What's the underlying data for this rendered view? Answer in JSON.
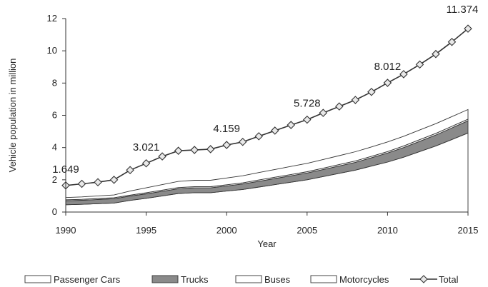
{
  "chart_data": {
    "type": "area",
    "title": "",
    "xlabel": "Year",
    "ylabel": "Vehicle population in million",
    "xlim": [
      1990,
      2015
    ],
    "ylim": [
      0,
      12
    ],
    "x_ticks": [
      "1990",
      "1995",
      "2000",
      "2005",
      "2010",
      "2015"
    ],
    "y_ticks": [
      "0",
      "2",
      "4",
      "6",
      "8",
      "10",
      "12"
    ],
    "grid": false,
    "legend_position": "bottom",
    "legend_order": [
      "Passenger Cars",
      "Trucks",
      "Buses",
      "Motorcycles",
      "Total"
    ],
    "years": [
      1990,
      1991,
      1992,
      1993,
      1994,
      1995,
      1996,
      1997,
      1998,
      1999,
      2000,
      2001,
      2002,
      2003,
      2004,
      2005,
      2006,
      2007,
      2008,
      2009,
      2010,
      2011,
      2012,
      2013,
      2014,
      2015
    ],
    "series": [
      {
        "name": "Passenger Cars",
        "kind": "area",
        "color": "#ffffff",
        "values": [
          0.45,
          0.48,
          0.52,
          0.56,
          0.72,
          0.85,
          1.0,
          1.15,
          1.2,
          1.2,
          1.3,
          1.4,
          1.55,
          1.7,
          1.85,
          2.0,
          2.2,
          2.4,
          2.6,
          2.85,
          3.1,
          3.4,
          3.75,
          4.1,
          4.5,
          4.9
        ]
      },
      {
        "name": "Trucks",
        "kind": "area",
        "color": "#8a8a8a",
        "values": [
          0.25,
          0.25,
          0.26,
          0.27,
          0.27,
          0.28,
          0.29,
          0.3,
          0.3,
          0.3,
          0.32,
          0.34,
          0.36,
          0.38,
          0.4,
          0.42,
          0.44,
          0.46,
          0.48,
          0.52,
          0.56,
          0.6,
          0.64,
          0.68,
          0.72,
          0.76
        ]
      },
      {
        "name": "Buses",
        "kind": "area",
        "color": "#ffffff",
        "values": [
          0.06,
          0.06,
          0.06,
          0.06,
          0.06,
          0.07,
          0.07,
          0.07,
          0.07,
          0.07,
          0.07,
          0.07,
          0.08,
          0.08,
          0.08,
          0.08,
          0.08,
          0.09,
          0.09,
          0.09,
          0.09,
          0.1,
          0.1,
          0.1,
          0.1,
          0.1
        ]
      },
      {
        "name": "Motorcycles",
        "kind": "area",
        "color": "#ffffff",
        "values": [
          0.14,
          0.15,
          0.16,
          0.17,
          0.25,
          0.3,
          0.34,
          0.38,
          0.4,
          0.4,
          0.42,
          0.44,
          0.46,
          0.48,
          0.5,
          0.52,
          0.54,
          0.55,
          0.57,
          0.58,
          0.6,
          0.6,
          0.6,
          0.6,
          0.6,
          0.6
        ]
      },
      {
        "name": "Total",
        "kind": "line",
        "color": "#333333",
        "values": [
          1.649,
          1.75,
          1.85,
          2.0,
          2.6,
          3.021,
          3.45,
          3.8,
          3.85,
          3.9,
          4.159,
          4.35,
          4.7,
          5.05,
          5.4,
          5.728,
          6.15,
          6.55,
          6.95,
          7.45,
          8.012,
          8.55,
          9.15,
          9.8,
          10.55,
          11.374
        ]
      }
    ],
    "annotations": [
      {
        "year": 1990,
        "value": 1.649,
        "text": "1.649"
      },
      {
        "year": 1995,
        "value": 3.021,
        "text": "3.021"
      },
      {
        "year": 2000,
        "value": 4.159,
        "text": "4.159"
      },
      {
        "year": 2005,
        "value": 5.728,
        "text": "5.728"
      },
      {
        "year": 2010,
        "value": 8.012,
        "text": "8.012"
      },
      {
        "year": 2015,
        "value": 11.374,
        "text": "11.374"
      }
    ]
  }
}
